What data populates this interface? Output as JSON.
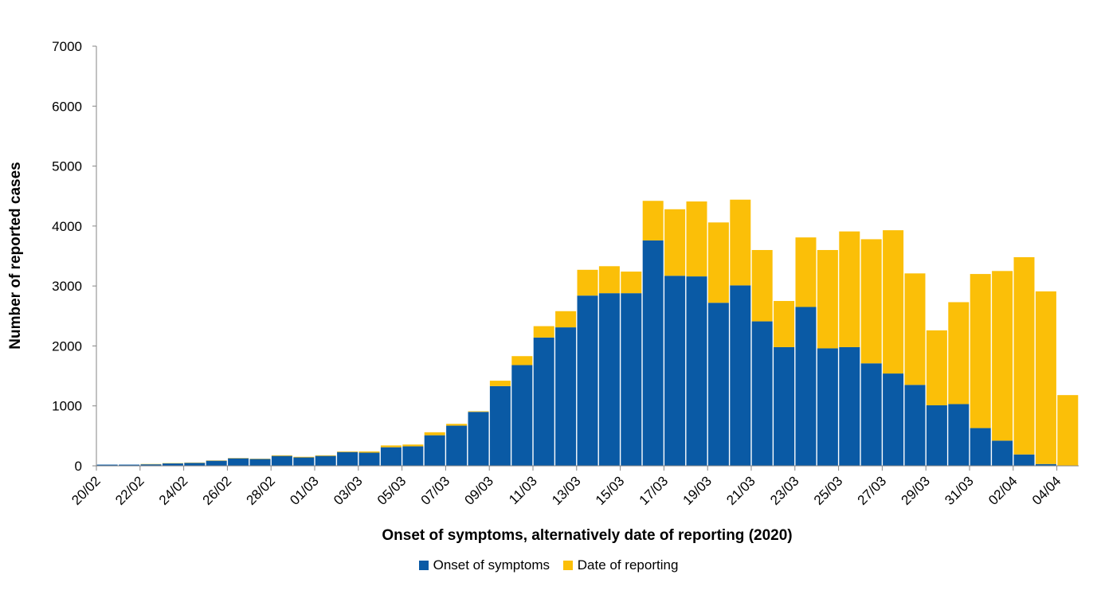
{
  "chart_data": {
    "type": "bar",
    "stacked": true,
    "xlabel": "Onset of symptoms, alternatively date of reporting (2020)",
    "ylabel": "Number of reported cases",
    "ylim": [
      0,
      7000
    ],
    "yticks": [
      0,
      1000,
      2000,
      3000,
      4000,
      5000,
      6000,
      7000
    ],
    "categories": [
      "20/02",
      "21/02",
      "22/02",
      "23/02",
      "24/02",
      "25/02",
      "26/02",
      "27/02",
      "28/02",
      "29/02",
      "01/03",
      "02/03",
      "03/03",
      "04/03",
      "05/03",
      "06/03",
      "07/03",
      "08/03",
      "09/03",
      "10/03",
      "11/03",
      "12/03",
      "13/03",
      "14/03",
      "15/03",
      "16/03",
      "17/03",
      "18/03",
      "19/03",
      "20/03",
      "21/03",
      "22/03",
      "23/03",
      "24/03",
      "25/03",
      "26/03",
      "27/03",
      "28/03",
      "29/03",
      "30/03",
      "31/03",
      "01/04",
      "02/04",
      "03/04",
      "04/04"
    ],
    "tick_labels": [
      "20/02",
      "22/02",
      "24/02",
      "26/02",
      "28/02",
      "01/03",
      "03/03",
      "05/03",
      "07/03",
      "09/03",
      "11/03",
      "13/03",
      "15/03",
      "17/03",
      "19/03",
      "21/03",
      "23/03",
      "25/03",
      "27/03",
      "29/03",
      "31/03",
      "02/04",
      "04/04"
    ],
    "series": [
      {
        "name": "Onset of symptoms",
        "color": "#0a5aa5",
        "values": [
          20,
          20,
          25,
          40,
          50,
          85,
          125,
          115,
          165,
          140,
          165,
          230,
          220,
          310,
          325,
          510,
          670,
          900,
          1330,
          1680,
          2140,
          2310,
          2840,
          2880,
          2880,
          3760,
          3170,
          3160,
          2720,
          3010,
          2410,
          1980,
          2650,
          1960,
          1980,
          1710,
          1540,
          1350,
          1010,
          1030,
          630,
          420,
          190,
          30,
          0
        ]
      },
      {
        "name": "Date of reporting",
        "color": "#fbbf08",
        "values": [
          0,
          0,
          5,
          5,
          5,
          5,
          5,
          5,
          10,
          10,
          10,
          10,
          20,
          30,
          30,
          50,
          30,
          10,
          90,
          150,
          190,
          270,
          430,
          450,
          360,
          660,
          1110,
          1250,
          1340,
          1430,
          1190,
          770,
          1160,
          1640,
          1930,
          2070,
          2390,
          1860,
          1250,
          1700,
          2570,
          2830,
          3290,
          2880,
          1180
        ]
      }
    ],
    "legend_position": "bottom",
    "grid": false
  }
}
